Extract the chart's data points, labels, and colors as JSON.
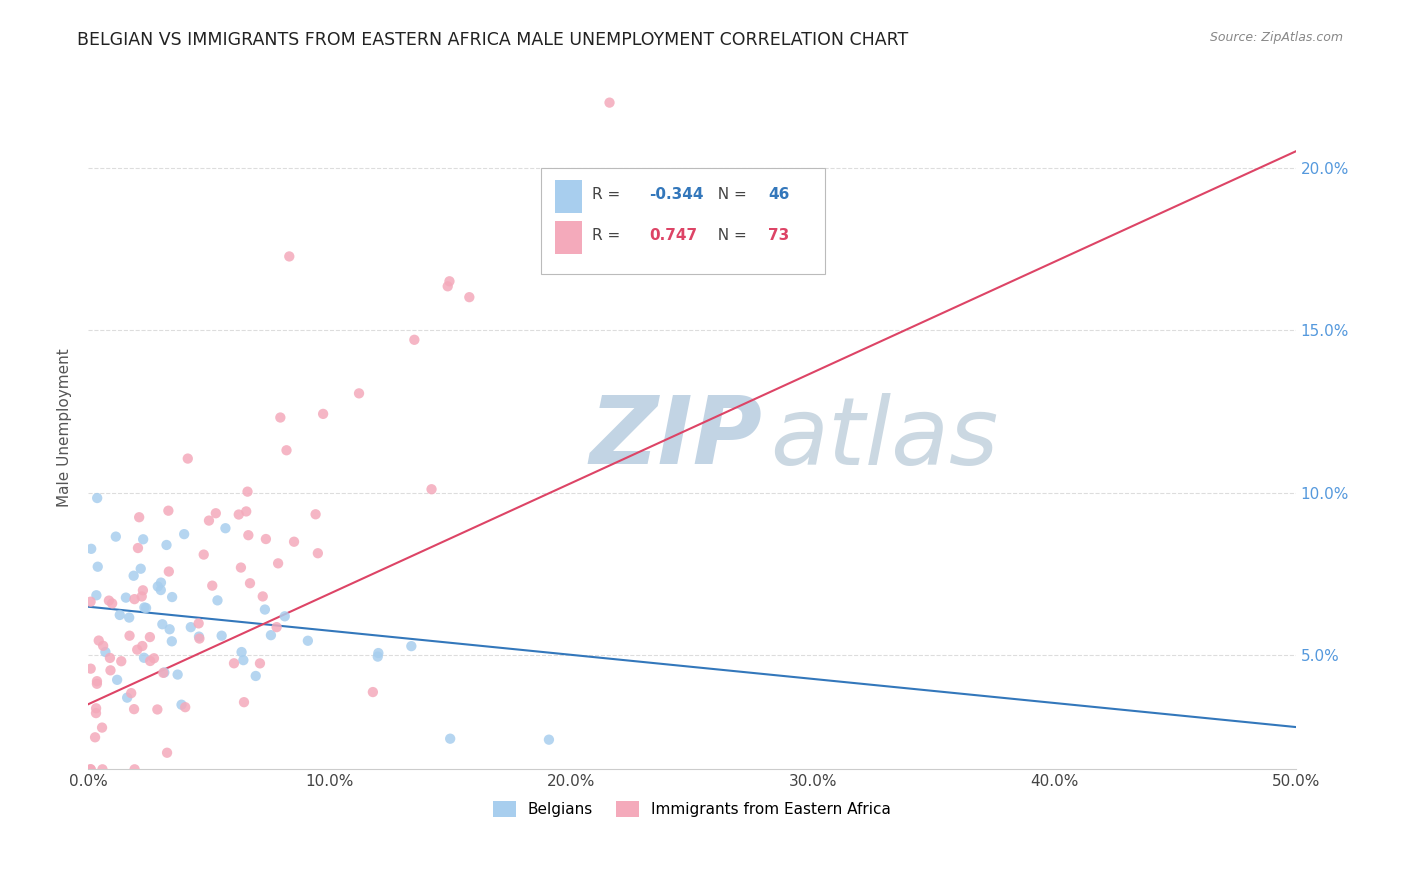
{
  "title": "BELGIAN VS IMMIGRANTS FROM EASTERN AFRICA MALE UNEMPLOYMENT CORRELATION CHART",
  "source": "Source: ZipAtlas.com",
  "ylabel": "Male Unemployment",
  "r_belgian": -0.344,
  "n_belgian": 46,
  "r_eastern_africa": 0.747,
  "n_eastern_africa": 73,
  "color_belgian": "#A8CEEE",
  "color_eastern_africa": "#F4AABB",
  "trendline_color_belgian": "#3377BB",
  "trendline_color_eastern_africa": "#DD4466",
  "ytick_color": "#5599DD",
  "watermark_zip_color": "#C8D8E8",
  "watermark_atlas_color": "#D0D8E0",
  "xlim": [
    0.0,
    50.0
  ],
  "ylim": [
    1.5,
    22.5
  ],
  "xticks": [
    0.0,
    10.0,
    20.0,
    30.0,
    40.0,
    50.0
  ],
  "yticks": [
    5.0,
    10.0,
    15.0,
    20.0
  ],
  "ytick_labels": [
    "5.0%",
    "10.0%",
    "15.0%",
    "20.0%"
  ],
  "xtick_labels": [
    "0.0%",
    "10.0%",
    "20.0%",
    "30.0%",
    "40.0%",
    "50.0%"
  ]
}
